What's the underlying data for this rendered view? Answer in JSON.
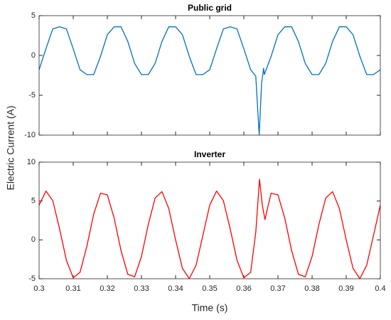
{
  "chart_data": [
    {
      "type": "line",
      "title": "Public grid",
      "ylabel": "Electric Current (A)",
      "color": "#0072bd",
      "xlim": [
        0.3,
        0.4
      ],
      "ylim": [
        -10,
        5
      ],
      "yticks": [
        -10,
        -5,
        0,
        5
      ],
      "x": [
        0.3,
        0.302,
        0.304,
        0.306,
        0.308,
        0.31,
        0.312,
        0.314,
        0.316,
        0.318,
        0.32,
        0.322,
        0.324,
        0.326,
        0.328,
        0.33,
        0.332,
        0.334,
        0.336,
        0.338,
        0.34,
        0.342,
        0.344,
        0.346,
        0.348,
        0.35,
        0.352,
        0.354,
        0.356,
        0.358,
        0.36,
        0.362,
        0.3635,
        0.3645,
        0.3652,
        0.3658,
        0.366,
        0.368,
        0.37,
        0.372,
        0.374,
        0.376,
        0.378,
        0.38,
        0.382,
        0.384,
        0.386,
        0.388,
        0.39,
        0.392,
        0.394,
        0.396,
        0.398,
        0.4
      ],
      "values": [
        -1.79,
        0.83,
        3.33,
        3.6,
        3.33,
        0.83,
        -1.79,
        -2.4,
        -2.4,
        -0.1,
        2.61,
        3.6,
        3.6,
        1.76,
        -1.0,
        -2.4,
        -2.4,
        -1.0,
        1.76,
        3.6,
        3.6,
        2.61,
        -0.1,
        -2.4,
        -2.4,
        -1.79,
        0.83,
        3.33,
        3.6,
        3.33,
        0.83,
        -1.79,
        -2.6,
        -10,
        -3.5,
        -1.6,
        -2.4,
        -0.1,
        2.61,
        3.6,
        3.6,
        1.76,
        -1.0,
        -2.4,
        -2.4,
        -1.0,
        1.76,
        3.6,
        3.6,
        2.61,
        -0.1,
        -2.4,
        -2.4,
        -1.79
      ]
    },
    {
      "type": "line",
      "title": "Inverter",
      "xlabel": "Time (s)",
      "color": "#ff0000",
      "xlim": [
        0.3,
        0.4
      ],
      "xticks": [
        0.3,
        0.31,
        0.32,
        0.33,
        0.34,
        0.35,
        0.36,
        0.37,
        0.38,
        0.39,
        0.4
      ],
      "ylim": [
        -5,
        10
      ],
      "yticks": [
        -5,
        0,
        5,
        10
      ],
      "x": [
        0.3,
        0.302,
        0.304,
        0.306,
        0.308,
        0.31,
        0.312,
        0.314,
        0.316,
        0.318,
        0.32,
        0.322,
        0.324,
        0.326,
        0.328,
        0.33,
        0.332,
        0.334,
        0.336,
        0.338,
        0.34,
        0.342,
        0.344,
        0.346,
        0.348,
        0.35,
        0.352,
        0.354,
        0.356,
        0.358,
        0.36,
        0.362,
        0.3635,
        0.3646,
        0.3654,
        0.3662,
        0.367,
        0.368,
        0.37,
        0.372,
        0.374,
        0.376,
        0.378,
        0.38,
        0.382,
        0.384,
        0.386,
        0.388,
        0.39,
        0.392,
        0.394,
        0.396,
        0.398,
        0.4
      ],
      "values": [
        4.46,
        6.28,
        5.05,
        1.42,
        -2.62,
        -4.89,
        -4.16,
        -0.82,
        3.31,
        6.0,
        5.79,
        2.79,
        -1.37,
        -4.43,
        -4.75,
        -2.13,
        1.99,
        5.38,
        6.21,
        4.03,
        0.01,
        -3.66,
        -4.99,
        -3.27,
        0.58,
        4.46,
        6.28,
        5.05,
        1.42,
        -2.62,
        -4.89,
        -4.16,
        1.0,
        7.8,
        4.5,
        2.6,
        4.2,
        6.0,
        5.79,
        2.79,
        -1.37,
        -4.43,
        -4.75,
        -2.13,
        1.99,
        5.38,
        6.21,
        4.03,
        0.01,
        -3.66,
        -4.99,
        -3.27,
        0.58,
        4.46
      ]
    }
  ]
}
